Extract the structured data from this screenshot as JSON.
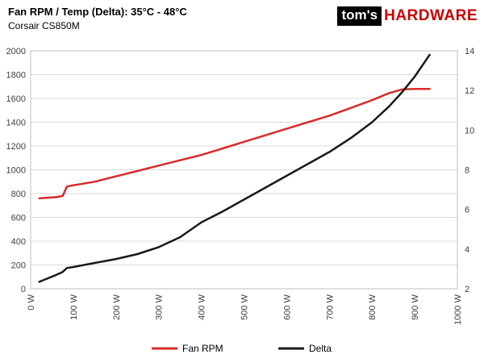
{
  "header": {
    "title": "Fan RPM / Temp (Delta): 35°C - 48°C",
    "subtitle": "Corsair CS850M",
    "logo": {
      "part1": "tom's",
      "part2": "HARDWARE",
      "part2_color": "#cc0000"
    }
  },
  "chart_data": {
    "type": "line",
    "x_axis": {
      "min": 0,
      "max": 1000
    },
    "x_ticks": [
      0,
      100,
      200,
      300,
      400,
      500,
      600,
      700,
      800,
      900,
      1000
    ],
    "x_tick_labels": [
      "0 W",
      "100 W",
      "200 W",
      "300 W",
      "400 W",
      "500 W",
      "600 W",
      "700 W",
      "800 W",
      "900 W",
      "1000 W"
    ],
    "left_axis": {
      "min": 0,
      "max": 2000,
      "step": 200
    },
    "right_axis": {
      "min": 2,
      "max": 14,
      "step": 2
    },
    "grid": true,
    "legend_position": "bottom",
    "x": [
      20,
      60,
      75,
      85,
      100,
      150,
      200,
      250,
      300,
      350,
      400,
      450,
      500,
      550,
      600,
      650,
      700,
      750,
      800,
      840,
      870,
      900,
      935
    ],
    "series": [
      {
        "name": "Fan RPM",
        "axis": "left",
        "color": "#d92b2b",
        "values": [
          760,
          770,
          780,
          860,
          870,
          900,
          945,
          990,
          1035,
          1080,
          1125,
          1180,
          1235,
          1290,
          1345,
          1400,
          1455,
          1520,
          1585,
          1645,
          1675,
          1680,
          1680
        ]
      },
      {
        "name": "Delta",
        "axis": "right",
        "color": "#1a1a1a",
        "values": [
          2.35,
          2.7,
          2.85,
          3.05,
          3.1,
          3.3,
          3.5,
          3.75,
          4.1,
          4.6,
          5.35,
          5.9,
          6.5,
          7.1,
          7.7,
          8.3,
          8.9,
          9.6,
          10.4,
          11.2,
          11.9,
          12.7,
          13.8
        ]
      }
    ]
  }
}
